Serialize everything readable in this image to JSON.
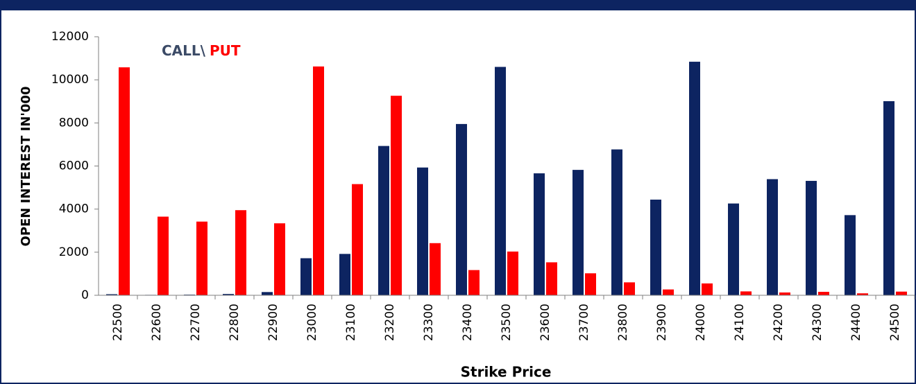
{
  "chart_data": {
    "type": "bar",
    "categories": [
      "22500",
      "22600",
      "22700",
      "22800",
      "22900",
      "23000",
      "23100",
      "23200",
      "23300",
      "23400",
      "23500",
      "23600",
      "23700",
      "23800",
      "23900",
      "24000",
      "24100",
      "24200",
      "24300",
      "24400",
      "24500"
    ],
    "series": [
      {
        "name": "CALL",
        "color": "#0d2461",
        "values": [
          50,
          20,
          30,
          60,
          150,
          1720,
          1920,
          6930,
          5930,
          7950,
          10600,
          5660,
          5820,
          6770,
          4440,
          10840,
          4260,
          5390,
          5310,
          3720,
          9010
        ]
      },
      {
        "name": "PUT",
        "color": "#ff0000",
        "values": [
          10580,
          3650,
          3420,
          3950,
          3340,
          10620,
          5160,
          9260,
          2420,
          1170,
          2030,
          1530,
          1020,
          600,
          270,
          550,
          180,
          130,
          160,
          90,
          170
        ]
      }
    ],
    "legend_separator": "\\",
    "ylim": [
      0,
      12000
    ],
    "yticks": [
      0,
      2000,
      4000,
      6000,
      8000,
      10000,
      12000
    ],
    "ylabel": "OPEN INTEREST IN'000",
    "xlabel": "Strike Price"
  }
}
